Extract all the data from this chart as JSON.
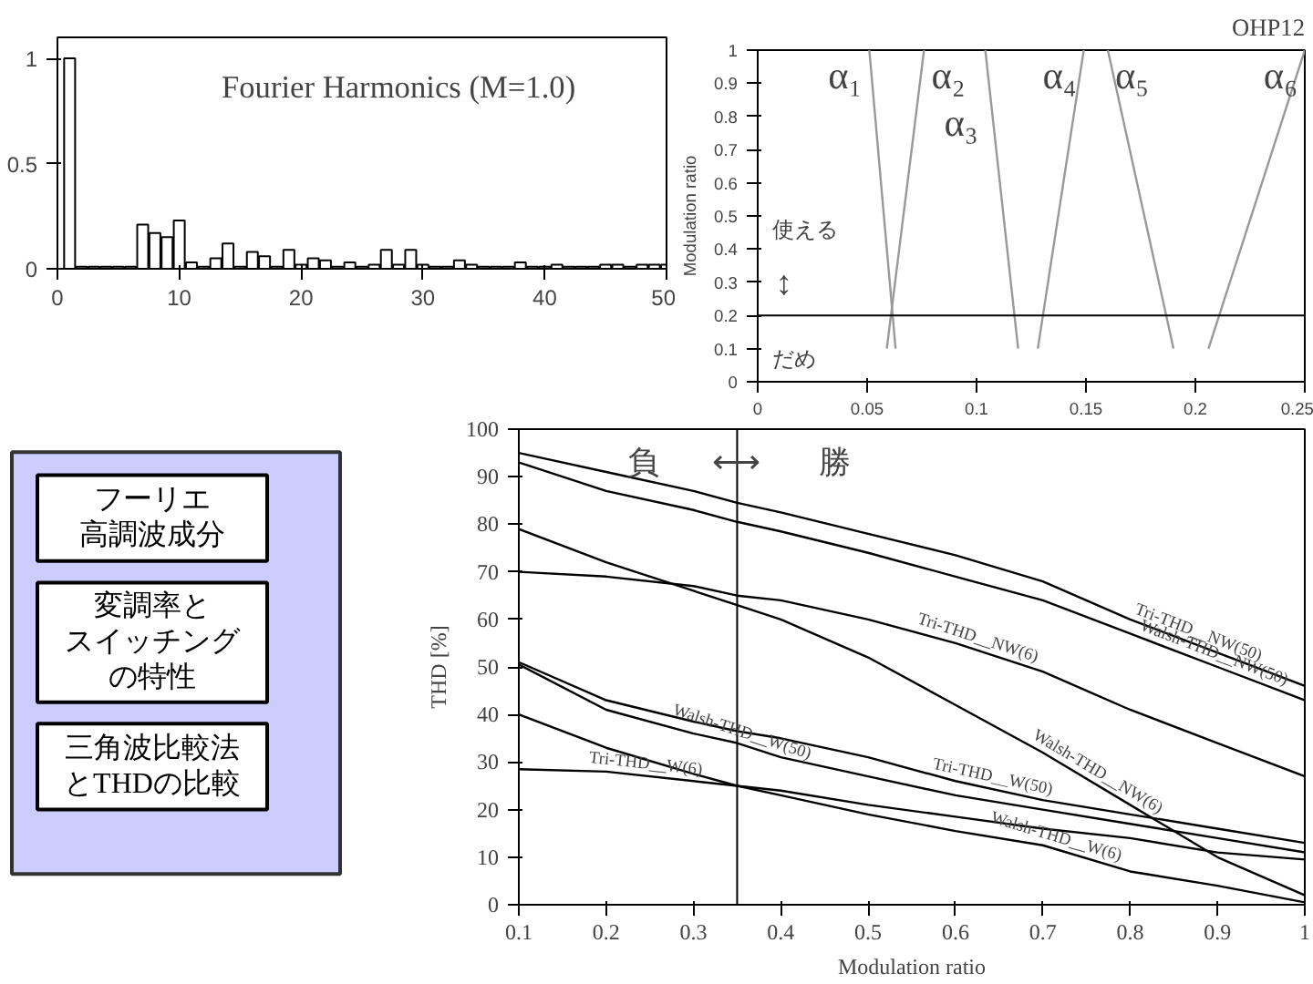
{
  "chart_data": [
    {
      "type": "bar",
      "title": "Fourier Harmonics (M=1.0)",
      "x": [
        1,
        2,
        3,
        4,
        5,
        6,
        7,
        8,
        9,
        10,
        11,
        12,
        13,
        14,
        15,
        16,
        17,
        18,
        19,
        20,
        21,
        22,
        23,
        24,
        25,
        26,
        27,
        28,
        29,
        30,
        31,
        32,
        33,
        34,
        35,
        36,
        37,
        38,
        39,
        40,
        41,
        42,
        43,
        44,
        45,
        46,
        47,
        48,
        49,
        50
      ],
      "values": [
        1.0,
        0.01,
        0.01,
        0.01,
        0.01,
        0.01,
        0.21,
        0.17,
        0.15,
        0.23,
        0.03,
        0.01,
        0.05,
        0.12,
        0.01,
        0.08,
        0.06,
        0.01,
        0.09,
        0.02,
        0.05,
        0.04,
        0.01,
        0.03,
        0.01,
        0.02,
        0.09,
        0.02,
        0.09,
        0.02,
        0.01,
        0.01,
        0.04,
        0.02,
        0.01,
        0.01,
        0.01,
        0.03,
        0.01,
        0.01,
        0.02,
        0.01,
        0.01,
        0.01,
        0.02,
        0.02,
        0.01,
        0.02,
        0.02,
        0.02
      ],
      "color": "#ffffff",
      "xlim": [
        0,
        50
      ],
      "ylim": [
        0,
        1.1
      ],
      "xticks": [
        0,
        10,
        20,
        30,
        40,
        50
      ],
      "yticks": [
        0,
        0.5,
        1
      ]
    },
    {
      "type": "line",
      "ylabel": "Modulation ratio",
      "xlim": [
        0,
        0.25
      ],
      "ylim": [
        0,
        1
      ],
      "xticks": [
        0,
        0.05,
        0.1,
        0.15,
        0.2,
        0.25
      ],
      "yticks": [
        0,
        0.1,
        0.2,
        0.3,
        0.4,
        0.5,
        0.6,
        0.7,
        0.8,
        0.9,
        1
      ],
      "series": [
        {
          "name": "α₁",
          "color": "#999999",
          "x": [
            0.051,
            0.063
          ],
          "values": [
            1,
            0.1
          ]
        },
        {
          "name": "α₂",
          "color": "#999999",
          "x": [
            0.076,
            0.059
          ],
          "values": [
            1,
            0.1
          ]
        },
        {
          "name": "α₃",
          "color": "#999999",
          "x": [
            0.104,
            0.119
          ],
          "values": [
            1,
            0.1
          ]
        },
        {
          "name": "α₄",
          "color": "#999999",
          "x": [
            0.149,
            0.128
          ],
          "values": [
            1,
            0.1
          ]
        },
        {
          "name": "α₅",
          "color": "#999999",
          "x": [
            0.16,
            0.19
          ],
          "values": [
            1,
            0.1
          ]
        },
        {
          "name": "α₆",
          "color": "#999999",
          "x": [
            0.25,
            0.206
          ],
          "values": [
            1,
            0.1
          ]
        }
      ],
      "ref_lines": [
        {
          "axis": "y",
          "value": 0.2,
          "color": "#000000"
        }
      ],
      "annotations": [
        "使える",
        "だめ",
        "OHP12",
        "↕"
      ]
    },
    {
      "type": "line",
      "xlabel": "Modulation ratio",
      "ylabel": "THD [%]",
      "xlim": [
        0.1,
        1
      ],
      "ylim": [
        0,
        100
      ],
      "xticks": [
        0.1,
        0.2,
        0.3,
        0.4,
        0.5,
        0.6,
        0.7,
        0.8,
        0.9,
        1
      ],
      "yticks": [
        0,
        10,
        20,
        30,
        40,
        50,
        60,
        70,
        80,
        90,
        100
      ],
      "x": [
        0.1,
        0.2,
        0.3,
        0.35,
        0.4,
        0.5,
        0.6,
        0.7,
        0.8,
        0.9,
        1.0
      ],
      "series": [
        {
          "name": "Tri-THD__NW(50)",
          "color": "#000000",
          "values": [
            95,
            91,
            87,
            84.5,
            82.5,
            78,
            73.5,
            68,
            60,
            53,
            46
          ]
        },
        {
          "name": "Walsh-THD__NW(50)",
          "color": "#000000",
          "values": [
            93,
            87,
            83,
            80.5,
            78.5,
            74,
            69,
            64,
            57,
            50,
            43
          ]
        },
        {
          "name": "Tri-THD__NW(6)",
          "color": "#000000",
          "values": [
            70,
            69,
            67,
            65,
            64,
            60,
            55,
            49,
            41,
            34,
            27
          ]
        },
        {
          "name": "Walsh-THD__NW(6)",
          "color": "#000000",
          "values": [
            79,
            72,
            66,
            63,
            60,
            52,
            42,
            32,
            21,
            10,
            2
          ]
        },
        {
          "name": "Tri-THD__W(50)",
          "color": "#000000",
          "values": [
            51,
            43,
            38.5,
            36.5,
            35,
            31,
            26,
            22,
            19,
            16,
            13
          ]
        },
        {
          "name": "Walsh-THD__W(50)",
          "color": "#000000",
          "values": [
            50.5,
            41,
            36,
            34,
            31,
            27,
            23,
            20,
            17,
            14,
            11
          ]
        },
        {
          "name": "Tri-THD__W(6)",
          "color": "#000000",
          "values": [
            28.5,
            28,
            26,
            25,
            24,
            21,
            18.5,
            16,
            14,
            11,
            9.5
          ]
        },
        {
          "name": "Walsh-THD__W(6)",
          "color": "#000000",
          "values": [
            40,
            33,
            27.5,
            25,
            23,
            19,
            15.5,
            12.5,
            7,
            4,
            0.5
          ]
        }
      ],
      "ref_lines": [
        {
          "axis": "x",
          "value": 0.35,
          "color": "#000000"
        }
      ],
      "annotations": [
        "負",
        "勝",
        "⟷"
      ]
    },
    {
      "type": "other",
      "annotations": [
        "フーリエ高調波成分",
        "変調率とスイッチングの特性",
        "三角波比較法とTHDの比較"
      ]
    }
  ]
}
